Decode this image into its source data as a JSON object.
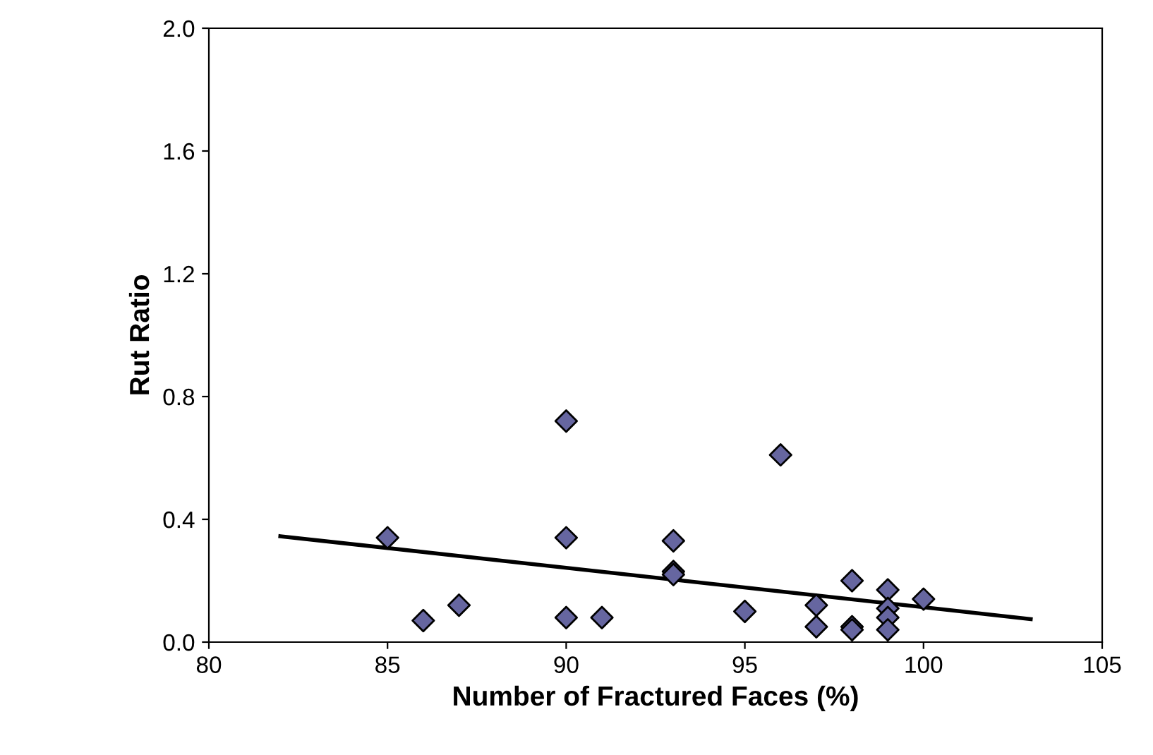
{
  "chart_data": {
    "type": "scatter",
    "xlabel": "Number of Fractured Faces (%)",
    "ylabel": "Rut Ratio",
    "xlim": [
      80,
      105
    ],
    "xticks": [
      80,
      85,
      90,
      95,
      100,
      105
    ],
    "ylim": [
      0,
      2.0
    ],
    "yticks": [
      {
        "value": 0,
        "label": "0.0"
      },
      {
        "value": 0.4,
        "label": "0.4"
      },
      {
        "value": 0.8,
        "label": "0.8"
      },
      {
        "value": 1.2,
        "label": "1.2"
      },
      {
        "value": 1.6,
        "label": "1.6"
      },
      {
        "value": 2.0,
        "label": "2.0"
      }
    ],
    "grid": false,
    "legend": false,
    "series": [
      {
        "marker": "diamond",
        "color": "#6666a0",
        "x": [
          85,
          86,
          87,
          90,
          90,
          90,
          91,
          93,
          93,
          93,
          95,
          96,
          97,
          97,
          98,
          98,
          98,
          99,
          99,
          99,
          99,
          100
        ],
        "values": [
          0.34,
          0.07,
          0.12,
          0.72,
          0.34,
          0.08,
          0.08,
          0.33,
          0.23,
          0.22,
          0.1,
          0.61,
          0.12,
          0.05,
          0.2,
          0.05,
          0.04,
          0.17,
          0.11,
          0.08,
          0.04,
          0.14
        ]
      },
      {
        "type": "line",
        "color": "#000000",
        "x": [
          82,
          103
        ],
        "values": [
          0.345,
          0.075
        ]
      }
    ]
  }
}
